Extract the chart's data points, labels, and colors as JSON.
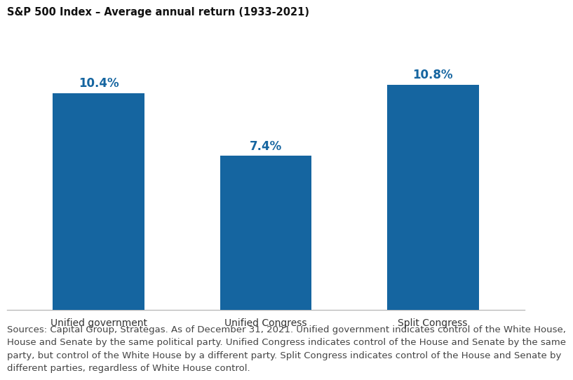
{
  "title": "S&P 500 Index – Average annual return (1933-2021)",
  "categories": [
    "Unified government",
    "Unified Congress",
    "Split Congress"
  ],
  "values": [
    10.4,
    7.4,
    10.8
  ],
  "bar_labels": [
    "10.4%",
    "7.4%",
    "10.8%"
  ],
  "bar_color": "#1565a0",
  "label_color": "#1565a0",
  "background_color": "#ffffff",
  "ylim": [
    0,
    13
  ],
  "title_fontsize": 10.5,
  "bar_label_fontsize": 12,
  "tick_label_fontsize": 10,
  "footnote": "Sources: Capital Group, Strategas. As of December 31, 2021. Unified government indicates control of the White House,\nHouse and Senate by the same political party. Unified Congress indicates control of the House and Senate by the same\nparty, but control of the White House by a different party. Split Congress indicates control of the House and Senate by\ndifferent parties, regardless of White House control.",
  "footnote_fontsize": 9.5
}
